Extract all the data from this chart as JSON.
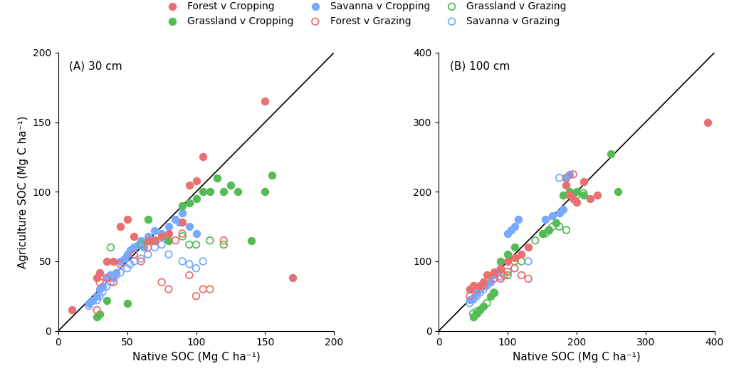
{
  "panel_A": {
    "title": "(A) 30 cm",
    "xlim": [
      0,
      200
    ],
    "ylim": [
      0,
      200
    ],
    "xticks": [
      0,
      50,
      100,
      150,
      200
    ],
    "yticks": [
      0,
      50,
      100,
      150,
      200
    ],
    "forest_cropping": {
      "x": [
        10,
        28,
        30,
        35,
        40,
        45,
        50,
        55,
        65,
        70,
        75,
        80,
        90,
        95,
        100,
        105,
        150,
        170
      ],
      "y": [
        15,
        38,
        42,
        50,
        50,
        75,
        80,
        68,
        65,
        65,
        68,
        70,
        78,
        105,
        108,
        125,
        165,
        38
      ],
      "color": "#E87070",
      "filled": true,
      "label": "Forest v Cropping"
    },
    "forest_grazing": {
      "x": [
        28,
        30,
        35,
        40,
        45,
        55,
        60,
        65,
        70,
        75,
        80,
        85,
        90,
        95,
        100,
        105,
        110,
        120
      ],
      "y": [
        15,
        35,
        38,
        35,
        48,
        55,
        50,
        60,
        65,
        35,
        30,
        65,
        70,
        40,
        25,
        30,
        30,
        65
      ],
      "color": "#E87070",
      "filled": false,
      "label": "Forest v Grazing"
    },
    "grassland_cropping": {
      "x": [
        28,
        30,
        35,
        50,
        65,
        70,
        80,
        90,
        95,
        100,
        105,
        110,
        115,
        120,
        125,
        130,
        140,
        150,
        155
      ],
      "y": [
        10,
        12,
        22,
        20,
        80,
        65,
        65,
        90,
        92,
        95,
        100,
        100,
        110,
        100,
        105,
        100,
        65,
        100,
        112
      ],
      "color": "#55BB55",
      "filled": true,
      "label": "Grassland v Cropping"
    },
    "grassland_grazing": {
      "x": [
        38,
        60,
        70,
        80,
        90,
        95,
        100,
        110,
        120
      ],
      "y": [
        60,
        62,
        65,
        65,
        68,
        62,
        62,
        65,
        62
      ],
      "color": "#55BB55",
      "filled": false,
      "label": "Grassland v Grazing"
    },
    "savanna_cropping": {
      "x": [
        22,
        25,
        28,
        30,
        32,
        35,
        38,
        40,
        42,
        45,
        48,
        50,
        52,
        55,
        58,
        60,
        62,
        65,
        68,
        70,
        75,
        80,
        85,
        88,
        90,
        95,
        100
      ],
      "y": [
        20,
        22,
        25,
        30,
        32,
        38,
        40,
        38,
        42,
        50,
        52,
        55,
        58,
        60,
        62,
        65,
        60,
        68,
        65,
        72,
        70,
        75,
        80,
        78,
        85,
        75,
        70
      ],
      "color": "#77AAFF",
      "filled": true,
      "label": "Savanna v Cropping"
    },
    "savanna_grazing": {
      "x": [
        22,
        28,
        30,
        32,
        35,
        38,
        40,
        42,
        45,
        50,
        52,
        55,
        60,
        65,
        70,
        75,
        80,
        90,
        95,
        100,
        105
      ],
      "y": [
        18,
        22,
        25,
        28,
        32,
        35,
        38,
        40,
        42,
        45,
        48,
        50,
        52,
        55,
        60,
        62,
        55,
        50,
        48,
        45,
        50
      ],
      "color": "#77AAFF",
      "filled": false,
      "label": "Savanna v Grazing"
    }
  },
  "panel_B": {
    "title": "(B) 100 cm",
    "xlim": [
      0,
      400
    ],
    "ylim": [
      0,
      400
    ],
    "xticks": [
      0,
      100,
      200,
      300,
      400
    ],
    "yticks": [
      0,
      100,
      200,
      300,
      400
    ],
    "forest_cropping": {
      "x": [
        45,
        50,
        60,
        65,
        70,
        80,
        90,
        100,
        110,
        120,
        130,
        185,
        190,
        195,
        200,
        210,
        220,
        230,
        390
      ],
      "y": [
        60,
        65,
        65,
        70,
        80,
        85,
        90,
        100,
        105,
        110,
        120,
        210,
        195,
        190,
        185,
        215,
        190,
        195,
        300
      ],
      "color": "#E87070",
      "filled": true,
      "label": "Forest v Cropping"
    },
    "forest_grazing": {
      "x": [
        45,
        55,
        65,
        80,
        90,
        95,
        100,
        110,
        120,
        130,
        185,
        195
      ],
      "y": [
        50,
        60,
        65,
        75,
        75,
        80,
        85,
        90,
        80,
        75,
        220,
        225
      ],
      "color": "#E87070",
      "filled": false,
      "label": "Forest v Grazing"
    },
    "grassland_cropping": {
      "x": [
        50,
        55,
        60,
        65,
        75,
        80,
        90,
        100,
        110,
        150,
        160,
        170,
        180,
        190,
        200,
        210,
        250,
        260
      ],
      "y": [
        20,
        25,
        30,
        35,
        50,
        55,
        100,
        110,
        120,
        140,
        145,
        155,
        195,
        200,
        200,
        195,
        255,
        200
      ],
      "color": "#55BB55",
      "filled": true,
      "label": "Grassland v Cropping"
    },
    "grassland_grazing": {
      "x": [
        50,
        55,
        60,
        70,
        80,
        100,
        110,
        120,
        140,
        155,
        165,
        175,
        185,
        200,
        210
      ],
      "y": [
        25,
        28,
        30,
        40,
        55,
        80,
        100,
        100,
        130,
        140,
        150,
        150,
        145,
        195,
        198
      ],
      "color": "#55BB55",
      "filled": false,
      "label": "Grassland v Grazing"
    },
    "savanna_cropping": {
      "x": [
        45,
        50,
        55,
        60,
        65,
        70,
        75,
        80,
        85,
        90,
        100,
        105,
        110,
        115,
        155,
        165,
        175,
        180,
        185,
        190
      ],
      "y": [
        45,
        48,
        55,
        60,
        65,
        68,
        70,
        80,
        85,
        90,
        140,
        145,
        150,
        160,
        160,
        165,
        170,
        175,
        220,
        225
      ],
      "color": "#77AAFF",
      "filled": true,
      "label": "Savanna v Cropping"
    },
    "savanna_grazing": {
      "x": [
        45,
        50,
        55,
        60,
        65,
        70,
        80,
        90,
        100,
        110,
        130,
        160,
        175
      ],
      "y": [
        40,
        45,
        50,
        55,
        60,
        65,
        75,
        78,
        85,
        90,
        100,
        145,
        220
      ],
      "color": "#77AAFF",
      "filled": false,
      "label": "Savanna v Grazing"
    }
  },
  "xlabel": "Native SOC (Mg C ha⁻¹)",
  "ylabel": "Agriculture SOC (Mg C ha⁻¹)",
  "marker_size": 48,
  "marker_linewidth": 1.3,
  "legend_labels_row1": [
    "Forest v Cropping",
    "Grassland v Cropping",
    "Savanna v Cropping"
  ],
  "legend_labels_row2": [
    "Forest v Grazing",
    "Grassland v Grazing",
    "Savanna v Grazing"
  ],
  "legend_colors_row1": [
    "#E87070",
    "#55BB55",
    "#77AAFF"
  ],
  "legend_colors_row2": [
    "#E87070",
    "#55BB55",
    "#77AAFF"
  ],
  "background_color": "#ffffff"
}
